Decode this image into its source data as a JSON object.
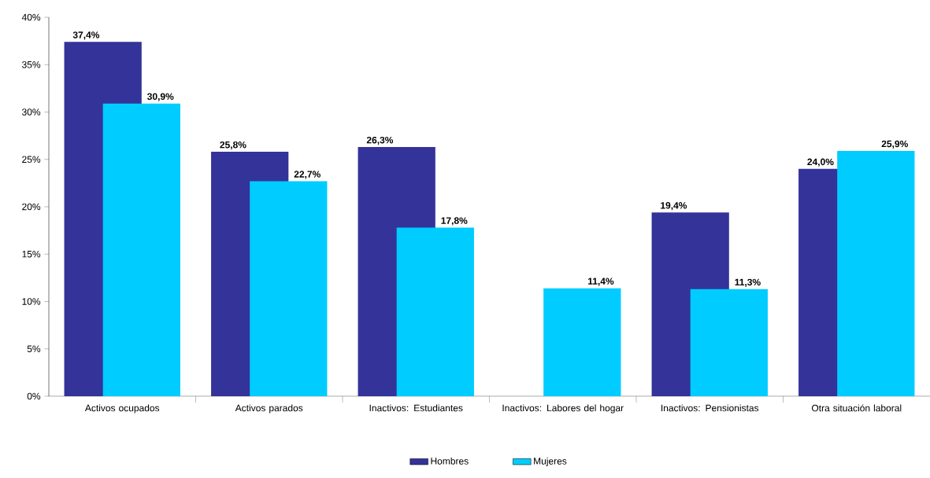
{
  "chart_data": {
    "type": "bar",
    "categories": [
      "Activos ocupados",
      "Activos parados",
      "Inactivos: Estudiantes",
      "Inactivos: Labores del hogar",
      "Inactivos: Pensionistas",
      "Otra situación laboral"
    ],
    "series": [
      {
        "name": "Hombres",
        "color": "#333399",
        "values": [
          37.4,
          25.8,
          26.3,
          null,
          19.4,
          24.0
        ],
        "value_labels": [
          "37,4%",
          "25,8%",
          "26,3%",
          null,
          "19,4%",
          "24,0%"
        ]
      },
      {
        "name": "Mujeres",
        "color": "#00ccff",
        "values": [
          30.9,
          22.7,
          17.8,
          11.4,
          11.3,
          25.9
        ],
        "value_labels": [
          "30,9%",
          "22,7%",
          "17,8%",
          "11,4%",
          "11,3%",
          "25,9%"
        ]
      }
    ],
    "ylim": [
      0,
      40
    ],
    "yticks": [
      {
        "value": 0,
        "label": "0%"
      },
      {
        "value": 5,
        "label": "5%"
      },
      {
        "value": 10,
        "label": "10%"
      },
      {
        "value": 15,
        "label": "15%"
      },
      {
        "value": 20,
        "label": "20%"
      },
      {
        "value": 25,
        "label": "25%"
      },
      {
        "value": 30,
        "label": "30%"
      },
      {
        "value": 35,
        "label": "35%"
      },
      {
        "value": 40,
        "label": "40%"
      }
    ],
    "legend": "bottom"
  }
}
